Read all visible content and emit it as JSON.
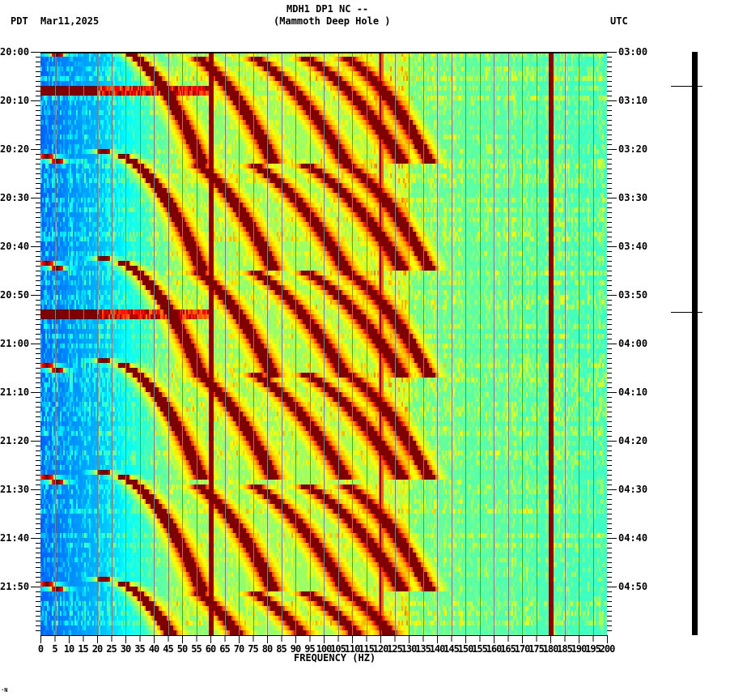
{
  "header": {
    "title_line1": "MDH1 DP1 NC --",
    "title_line2": "(Mammoth Deep Hole )",
    "left_tz": "PDT",
    "date": "Mar11,2025",
    "right_tz": "UTC"
  },
  "footer": {
    "xlabel": "FREQUENCY (HZ)",
    "corner_mark": "·N"
  },
  "colors": {
    "background": "#ffffff",
    "axis": "#000000",
    "gridline": "#7f7f7f",
    "colormap": [
      "#00007f",
      "#0000ff",
      "#0080ff",
      "#00ffff",
      "#80ff80",
      "#ffff00",
      "#ff8000",
      "#ff0000",
      "#7f0000"
    ]
  },
  "chart_data": {
    "type": "heatmap",
    "title": "MDH1 DP1 NC -- (Mammoth Deep Hole )",
    "subtitle": "Mar11,2025",
    "xlabel": "FREQUENCY (HZ)",
    "ylabel_left": "PDT",
    "ylabel_right": "UTC",
    "xlim": [
      0,
      200
    ],
    "x_ticks": [
      0,
      5,
      10,
      15,
      20,
      25,
      30,
      35,
      40,
      45,
      50,
      55,
      60,
      65,
      70,
      75,
      80,
      85,
      90,
      95,
      100,
      105,
      110,
      115,
      120,
      125,
      130,
      135,
      140,
      145,
      150,
      155,
      160,
      165,
      170,
      175,
      180,
      185,
      190,
      195,
      200
    ],
    "y_minutes_span": 120,
    "y_ticks_left": [
      "20:00",
      "20:10",
      "20:20",
      "20:30",
      "20:40",
      "20:50",
      "21:00",
      "21:10",
      "21:20",
      "21:30",
      "21:40",
      "21:50"
    ],
    "y_ticks_right": [
      "03:00",
      "03:10",
      "03:20",
      "03:30",
      "03:40",
      "03:50",
      "04:00",
      "04:10",
      "04:20",
      "04:30",
      "04:40",
      "04:50"
    ],
    "minor_tick_interval_min": 1,
    "grid": "vertical every 5 Hz",
    "persistent_lines_hz": [
      60,
      120,
      180
    ],
    "broadband_bursts_min": [
      7.5,
      53.5
    ],
    "sweep_cycles_start_min": [
      -2,
      20,
      42,
      63,
      86,
      108
    ],
    "sweep_description": "Repeating harmonic frequency sweeps (curved arcs) rising from ~22 Hz toward ~130 Hz roughly every 22 minutes; energy concentrated 25-130 Hz; low energy (blue) below 20 Hz; moderate (green/yellow) above 130 Hz",
    "scale_bar_markers_min": [
      7,
      53.5
    ]
  }
}
